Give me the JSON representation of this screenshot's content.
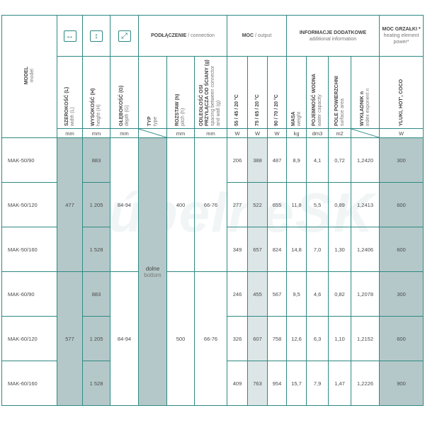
{
  "watermark": "KúpelneSK",
  "colors": {
    "border": "#2e8983",
    "shade_dark": "#b5c8c9",
    "shade_light": "#dde6e7"
  },
  "header": {
    "model": {
      "pl": "MODEL",
      "en": "model"
    },
    "width": {
      "icon": "horizontal-arrows-icon",
      "pl": "SZEROKOŚĆ (L)",
      "en": "width (L)",
      "unit": "mm"
    },
    "height": {
      "icon": "vertical-arrows-icon",
      "pl": "WYSOKOŚĆ (H)",
      "en": "height (H)",
      "unit": "mm"
    },
    "depth": {
      "icon": "diagonal-arrows-icon",
      "pl": "GŁĘBOKOŚĆ (G)",
      "en": "depth (G)",
      "unit": "mm"
    },
    "connection": {
      "pl": "PODŁĄCZENIE",
      "en": "/ connection"
    },
    "type": {
      "pl": "TYP",
      "en": "type"
    },
    "pitch": {
      "pl": "ROZSTAW (h)",
      "en": "pitch (h)",
      "unit": "mm"
    },
    "spacing": {
      "pl": "ODLEGŁOŚĆ OSI PRZYŁĄCZA OD ŚCIANY (g)",
      "en": "spacing between connector and wall (g)",
      "unit": "mm"
    },
    "output": {
      "pl": "MOC",
      "en": "/ output"
    },
    "out1": {
      "label": "55 / 45 / 20 °C",
      "unit": "W"
    },
    "out2": {
      "label": "75 / 65 / 20 °C",
      "unit": "W"
    },
    "out3": {
      "label": "90 / 70 / 20 °C",
      "unit": "W"
    },
    "additional": {
      "pl": "INFORMACJE DODATKOWE",
      "en": "additional information"
    },
    "mass": {
      "pl": "MASA",
      "en": "weight",
      "unit": "kg"
    },
    "water": {
      "pl": "POJEMNOŚĆ WODNA",
      "en": "water capacity",
      "unit": "dm3"
    },
    "surface": {
      "pl": "POLE POWIERZCHNI",
      "en": "surface area",
      "unit": "m2"
    },
    "exponent": {
      "pl": "WYKŁADNIK n",
      "en": "index exponent n"
    },
    "heater": {
      "pl": "MOC GRZAŁKI *",
      "en": "heating element power*",
      "models": "YLUKI, HOT', COCO",
      "unit": "W"
    }
  },
  "groups": [
    {
      "width": "477",
      "depth": "84-94",
      "pitch": "400",
      "spacing": "66-76"
    },
    {
      "width": "577",
      "depth": "84-94",
      "pitch": "500",
      "spacing": "66-76"
    }
  ],
  "type_value": {
    "pl": "dolne",
    "en": "bottom"
  },
  "rows": [
    {
      "model": "MAK-50/90",
      "height": "883",
      "o1": "206",
      "o2": "388",
      "o3": "487",
      "mass": "8,9",
      "water": "4,1",
      "surface": "0,72",
      "n": "1,2420",
      "heater": "300"
    },
    {
      "model": "MAK-50/120",
      "height": "1 205",
      "o1": "277",
      "o2": "522",
      "o3": "655",
      "mass": "11,8",
      "water": "5,5",
      "surface": "0,89",
      "n": "1,2413",
      "heater": "600"
    },
    {
      "model": "MAK-50/160",
      "height": "1 528",
      "o1": "349",
      "o2": "657",
      "o3": "824",
      "mass": "14,8",
      "water": "7,0",
      "surface": "1,30",
      "n": "1,2406",
      "heater": "600"
    },
    {
      "model": "MAK-60/90",
      "height": "883",
      "o1": "246",
      "o2": "455",
      "o3": "567",
      "mass": "9,5",
      "water": "4,6",
      "surface": "0,82",
      "n": "1,2078",
      "heater": "300"
    },
    {
      "model": "MAK-60/120",
      "height": "1 205",
      "o1": "326",
      "o2": "607",
      "o3": "758",
      "mass": "12,6",
      "water": "6,3",
      "surface": "1,10",
      "n": "1,2152",
      "heater": "600"
    },
    {
      "model": "MAK-60/160",
      "height": "1 528",
      "o1": "409",
      "o2": "763",
      "o3": "954",
      "mass": "15,7",
      "water": "7,9",
      "surface": "1,47",
      "n": "1,2226",
      "heater": "900"
    }
  ]
}
